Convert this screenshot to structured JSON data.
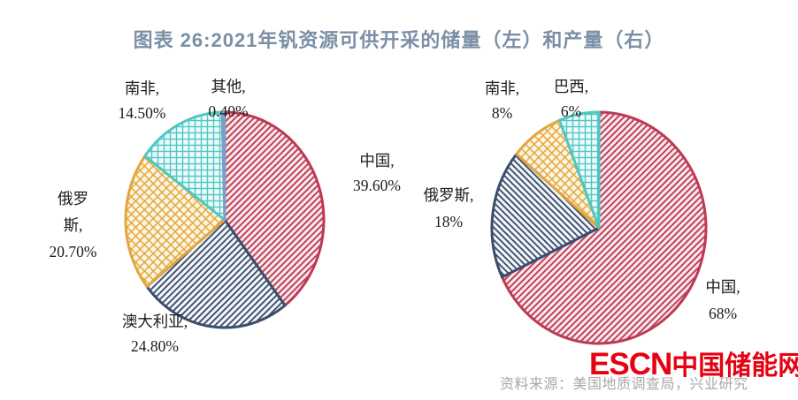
{
  "title": "图表 26:2021年钒资源可供开采的储量（左）和产量（右）",
  "source": {
    "text": "资料来源：美国地质调查局，兴业研究"
  },
  "watermark": {
    "en": "ESCN",
    "cn": "中国储能网",
    "color": "#e60012"
  },
  "chart_data": [
    {
      "type": "pie",
      "name": "reserves",
      "subtitle": "储量（左）",
      "year": "2021",
      "unit": "%",
      "start_angle": 0,
      "direction": "clockwise",
      "legend_position": "none",
      "slices": [
        {
          "label": "中国",
          "value": 39.6,
          "display": "39.60%",
          "pattern": "diag-up",
          "color": "#bd3a53",
          "bg": "#f9e9ed"
        },
        {
          "label": "澳大利亚",
          "value": 24.8,
          "display": "24.80%",
          "pattern": "diag-up",
          "color": "#3a4e6b",
          "bg": "#f5f7fa"
        },
        {
          "label": "俄罗斯",
          "value": 20.7,
          "display": "20.70%",
          "pattern": "cross",
          "color": "#e2a63d",
          "bg": "#fdf6e3"
        },
        {
          "label": "南非",
          "value": 14.5,
          "display": "14.50%",
          "pattern": "grid",
          "color": "#4ec7c3",
          "bg": "#eefbfa"
        },
        {
          "label": "其他",
          "value": 0.4,
          "display": "0.40%",
          "pattern": "solid",
          "color": "#7d9ec8",
          "bg": "#7d9ec8"
        }
      ]
    },
    {
      "type": "pie",
      "name": "production",
      "subtitle": "产量（右）",
      "year": "2021",
      "unit": "%",
      "start_angle": 0,
      "direction": "clockwise",
      "legend_position": "none",
      "slices": [
        {
          "label": "中国",
          "value": 68,
          "display": "68%",
          "pattern": "diag-up",
          "color": "#bd3a53",
          "bg": "#f9e9ed"
        },
        {
          "label": "俄罗斯",
          "value": 18,
          "display": "18%",
          "pattern": "diag-down",
          "color": "#3a4e6b",
          "bg": "#f5f7fa"
        },
        {
          "label": "南非",
          "value": 8,
          "display": "8%",
          "pattern": "cross",
          "color": "#e2a63d",
          "bg": "#fdf6e3"
        },
        {
          "label": "巴西",
          "value": 6,
          "display": "6%",
          "pattern": "grid",
          "color": "#4ec7c3",
          "bg": "#eefbfa"
        }
      ]
    }
  ],
  "labels": {
    "left": {
      "south_africa": [
        "南非,",
        "14.50%"
      ],
      "other": [
        "其他,",
        "0.40%"
      ],
      "china": [
        "中国,",
        "39.60%"
      ],
      "russia": [
        "俄罗",
        "斯,",
        "20.70%"
      ],
      "australia": [
        "澳大利亚,",
        "24.80%"
      ]
    },
    "right": {
      "south_africa": [
        "南非,",
        "8%"
      ],
      "brazil": [
        "巴西,",
        "6%"
      ],
      "russia": [
        "俄罗斯,",
        "18%"
      ],
      "china": [
        "中国,",
        "68%"
      ]
    }
  }
}
